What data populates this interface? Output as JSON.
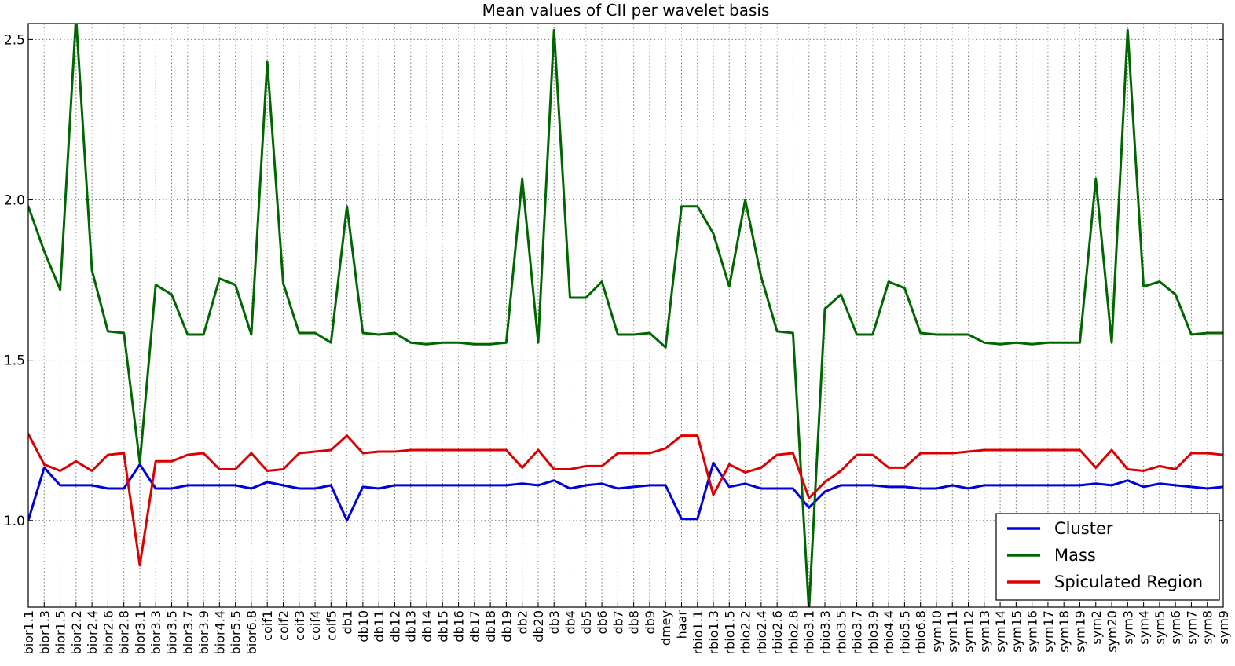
{
  "chart_data": {
    "type": "line",
    "title": "Mean values of CII per wavelet basis",
    "xlabel": "",
    "ylabel": "",
    "ylim": [
      0.73,
      2.55
    ],
    "yticks": [
      1.0,
      1.5,
      2.0,
      2.5
    ],
    "ytick_labels": [
      "1.0",
      "1.5",
      "2.0",
      "2.5"
    ],
    "grid": true,
    "legend_position": "lower-right",
    "categories": [
      "bior1.1",
      "bior1.3",
      "bior1.5",
      "bior2.2",
      "bior2.4",
      "bior2.6",
      "bior2.8",
      "bior3.1",
      "bior3.3",
      "bior3.5",
      "bior3.7",
      "bior3.9",
      "bior4.4",
      "bior5.5",
      "bior6.8",
      "coif1",
      "coif2",
      "coif3",
      "coif4",
      "coif5",
      "db1",
      "db10",
      "db11",
      "db12",
      "db13",
      "db14",
      "db15",
      "db16",
      "db17",
      "db18",
      "db19",
      "db2",
      "db20",
      "db3",
      "db4",
      "db5",
      "db6",
      "db7",
      "db8",
      "db9",
      "dmey",
      "haar",
      "rbio1.1",
      "rbio1.3",
      "rbio1.5",
      "rbio2.2",
      "rbio2.4",
      "rbio2.6",
      "rbio2.8",
      "rbio3.1",
      "rbio3.3",
      "rbio3.5",
      "rbio3.7",
      "rbio3.9",
      "rbio4.4",
      "rbio5.5",
      "rbio6.8",
      "sym10",
      "sym11",
      "sym12",
      "sym13",
      "sym14",
      "sym15",
      "sym16",
      "sym17",
      "sym18",
      "sym19",
      "sym2",
      "sym20",
      "sym3",
      "sym4",
      "sym5",
      "sym6",
      "sym7",
      "sym8",
      "sym9"
    ],
    "series": [
      {
        "name": "Cluster",
        "color": "#0000dd",
        "values": [
          1.0,
          1.165,
          1.11,
          1.11,
          1.11,
          1.1,
          1.1,
          1.175,
          1.1,
          1.1,
          1.11,
          1.11,
          1.11,
          1.11,
          1.1,
          1.12,
          1.11,
          1.1,
          1.1,
          1.11,
          1.0,
          1.105,
          1.1,
          1.11,
          1.11,
          1.11,
          1.11,
          1.11,
          1.11,
          1.11,
          1.11,
          1.115,
          1.11,
          1.125,
          1.1,
          1.11,
          1.115,
          1.1,
          1.105,
          1.11,
          1.11,
          1.005,
          1.005,
          1.18,
          1.105,
          1.115,
          1.1,
          1.1,
          1.1,
          1.04,
          1.09,
          1.11,
          1.11,
          1.11,
          1.105,
          1.105,
          1.1,
          1.1,
          1.11,
          1.1,
          1.11,
          1.11,
          1.11,
          1.11,
          1.11,
          1.11,
          1.11,
          1.115,
          1.11,
          1.125,
          1.105,
          1.115,
          1.11,
          1.105,
          1.1,
          1.105
        ]
      },
      {
        "name": "Mass",
        "color": "#006600",
        "values": [
          1.98,
          1.84,
          1.72,
          2.57,
          1.78,
          1.59,
          1.585,
          1.18,
          1.735,
          1.705,
          1.58,
          1.58,
          1.755,
          1.735,
          1.58,
          2.43,
          1.74,
          1.585,
          1.585,
          1.555,
          1.98,
          1.585,
          1.58,
          1.585,
          1.555,
          1.55,
          1.555,
          1.555,
          1.55,
          1.55,
          1.555,
          2.065,
          1.555,
          2.53,
          1.695,
          1.695,
          1.745,
          1.58,
          1.58,
          1.585,
          1.54,
          1.98,
          1.98,
          1.895,
          1.73,
          2.0,
          1.76,
          1.59,
          1.585,
          0.72,
          1.66,
          1.705,
          1.58,
          1.58,
          1.745,
          1.725,
          1.585,
          1.58,
          1.58,
          1.58,
          1.555,
          1.55,
          1.555,
          1.55,
          1.555,
          1.555,
          1.555,
          2.065,
          1.555,
          2.53,
          1.73,
          1.745,
          1.705,
          1.58,
          1.585,
          1.585
        ]
      },
      {
        "name": "Spiculated Region",
        "color": "#dd0000",
        "values": [
          1.27,
          1.175,
          1.155,
          1.185,
          1.155,
          1.205,
          1.21,
          0.86,
          1.185,
          1.185,
          1.205,
          1.21,
          1.16,
          1.16,
          1.21,
          1.155,
          1.16,
          1.21,
          1.215,
          1.22,
          1.265,
          1.21,
          1.215,
          1.215,
          1.22,
          1.22,
          1.22,
          1.22,
          1.22,
          1.22,
          1.22,
          1.165,
          1.22,
          1.16,
          1.16,
          1.17,
          1.17,
          1.21,
          1.21,
          1.21,
          1.225,
          1.265,
          1.265,
          1.08,
          1.175,
          1.15,
          1.165,
          1.205,
          1.21,
          1.07,
          1.12,
          1.155,
          1.205,
          1.205,
          1.165,
          1.165,
          1.21,
          1.21,
          1.21,
          1.215,
          1.22,
          1.22,
          1.22,
          1.22,
          1.22,
          1.22,
          1.22,
          1.165,
          1.22,
          1.16,
          1.155,
          1.17,
          1.16,
          1.21,
          1.21,
          1.205
        ]
      }
    ]
  }
}
